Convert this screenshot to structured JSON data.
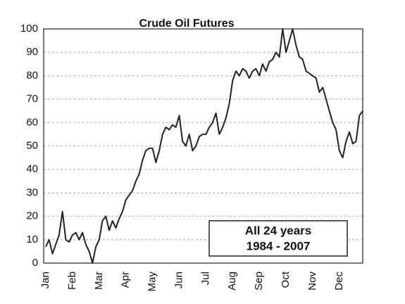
{
  "chart_data": {
    "type": "line",
    "title": "Crude Oil Futures",
    "annotation": [
      "All 24 years",
      "1984 - 2007"
    ],
    "categories": [
      "Jan",
      null,
      null,
      null,
      null,
      null,
      null,
      null,
      "Feb",
      null,
      null,
      null,
      null,
      null,
      null,
      null,
      "Mar",
      null,
      null,
      null,
      null,
      null,
      null,
      null,
      "Apr",
      null,
      null,
      null,
      null,
      null,
      null,
      null,
      "May",
      null,
      null,
      null,
      null,
      null,
      null,
      null,
      "Jun",
      null,
      null,
      null,
      null,
      null,
      null,
      null,
      "Jul",
      null,
      null,
      null,
      null,
      null,
      null,
      null,
      "Aug",
      null,
      null,
      null,
      null,
      null,
      null,
      null,
      "Sep",
      null,
      null,
      null,
      null,
      null,
      null,
      null,
      "Oct",
      null,
      null,
      null,
      null,
      null,
      null,
      null,
      "Nov",
      null,
      null,
      null,
      null,
      null,
      null,
      null,
      "Dec",
      null,
      null,
      null,
      null,
      null,
      null,
      null
    ],
    "series": [
      {
        "color": "#222222",
        "values": [
          7,
          10,
          4,
          8,
          12,
          22,
          10,
          9,
          12,
          13,
          10,
          13,
          8,
          5,
          0,
          7,
          10,
          18,
          20,
          14,
          18,
          15,
          19,
          22,
          27,
          29,
          31,
          35,
          38,
          44,
          48,
          49,
          49,
          43,
          48,
          55,
          58,
          57,
          59,
          58,
          63,
          52,
          50,
          55,
          48,
          50,
          54,
          55,
          55,
          58,
          60,
          64,
          55,
          58,
          62,
          68,
          78,
          82,
          80,
          83,
          82,
          79,
          82,
          83,
          80,
          85,
          82,
          86,
          87,
          90,
          88,
          100,
          90,
          95,
          100,
          93,
          88,
          87,
          82,
          81,
          80,
          79,
          73,
          75,
          70,
          65,
          60,
          57,
          48,
          45,
          52,
          56,
          51,
          52,
          63,
          65
        ]
      }
    ],
    "ylim": [
      0,
      100
    ],
    "yticks": [
      0,
      10,
      20,
      30,
      40,
      50,
      60,
      70,
      80,
      90,
      100
    ],
    "grid": true
  }
}
